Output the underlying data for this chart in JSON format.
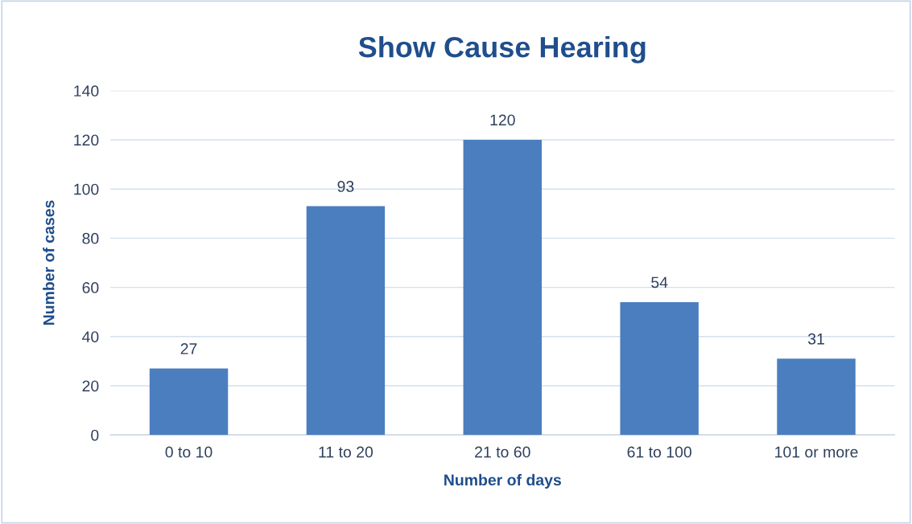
{
  "chart_data": {
    "type": "bar",
    "title": "Show Cause Hearing",
    "xlabel": "Number of days",
    "ylabel": "Number of cases",
    "categories": [
      "0 to 10",
      "11 to 20",
      "21 to 60",
      "61 to 100",
      "101 or more"
    ],
    "values": [
      27,
      93,
      120,
      54,
      31
    ],
    "color": "#4a7ebf",
    "ylim": [
      0,
      140
    ],
    "yticks": [
      0,
      20,
      40,
      60,
      80,
      100,
      120,
      140
    ],
    "grid": "y",
    "data_labels": true
  }
}
